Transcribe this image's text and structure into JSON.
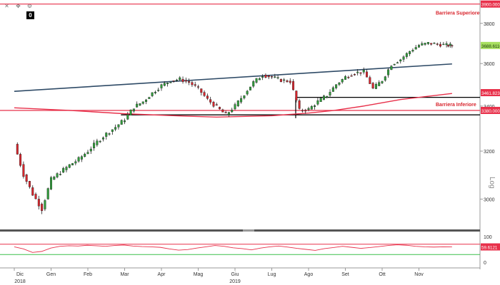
{
  "toolbar": {
    "icons": [
      "cross-icon",
      "move-icon",
      "settings-icon"
    ],
    "box_label": "0"
  },
  "chart_data": {
    "type": "candlestick",
    "xlabel": "",
    "ylabel": "",
    "yscale_label": "Log",
    "ylim": [
      2880,
      3910
    ],
    "y_ticks": [
      "3800",
      "3600",
      "3400",
      "3200",
      "3000"
    ],
    "x_tick_labels": [
      "Dic",
      "Gen",
      "Feb",
      "Mar",
      "Apr",
      "Mag",
      "Giu",
      "Lug",
      "Ago",
      "Set",
      "Ott",
      "Nov"
    ],
    "x_year_labels": [
      {
        "label": "2018",
        "month": "Dic"
      },
      {
        "label": "2019",
        "month": "Giu"
      }
    ],
    "price_tags": [
      {
        "label": "3900.0000",
        "value": 3900,
        "color": "#e8304a"
      },
      {
        "label": "3688.6110",
        "value": 3688.611,
        "color": "#a8e060"
      },
      {
        "label": "3461.8238",
        "value": 3461.8238,
        "color": "#e8304a"
      },
      {
        "label": "3380.0000",
        "value": 3380,
        "color": "#e8304a"
      }
    ],
    "annotations": [
      {
        "text": "Barriera Superiore",
        "value": 3900
      },
      {
        "text": "Barriera Inferiore",
        "value": 3380
      }
    ],
    "horizontal_lines": [
      {
        "value": 3900,
        "color": "#e8304a"
      },
      {
        "value": 3380,
        "color": "#e8304a"
      },
      {
        "value": 3360,
        "color": "#000000"
      }
    ],
    "trendline": {
      "from": {
        "month": 0,
        "value": 3468
      },
      "to": {
        "month": 11.9,
        "value": 3598
      },
      "color": "#2e4a66"
    },
    "moving_average": {
      "color": "#e8304a",
      "points": [
        [
          0,
          3392
        ],
        [
          1.5,
          3380
        ],
        [
          3,
          3365
        ],
        [
          4.5,
          3355
        ],
        [
          5.5,
          3350
        ],
        [
          7,
          3356
        ],
        [
          8,
          3368
        ],
        [
          8.7,
          3380
        ],
        [
          9.5,
          3400
        ],
        [
          10.5,
          3430
        ],
        [
          11.9,
          3458
        ]
      ]
    },
    "support_boxes": [
      {
        "from_month": 2.9,
        "to_month": 11.9,
        "value": 3360
      },
      {
        "from_month": 7.65,
        "to_month": 11.9,
        "value": 3440
      }
    ],
    "prices_weekly": [
      [
        0.0,
        3230
      ],
      [
        0.25,
        3100
      ],
      [
        0.5,
        3020
      ],
      [
        0.75,
        2960
      ],
      [
        1.0,
        3080
      ],
      [
        1.25,
        3110
      ],
      [
        1.5,
        3140
      ],
      [
        1.75,
        3165
      ],
      [
        2.0,
        3200
      ],
      [
        2.25,
        3240
      ],
      [
        2.5,
        3275
      ],
      [
        2.75,
        3305
      ],
      [
        3.0,
        3340
      ],
      [
        3.25,
        3395
      ],
      [
        3.5,
        3420
      ],
      [
        3.75,
        3460
      ],
      [
        4.0,
        3495
      ],
      [
        4.25,
        3518
      ],
      [
        4.5,
        3525
      ],
      [
        4.75,
        3510
      ],
      [
        5.0,
        3480
      ],
      [
        5.25,
        3430
      ],
      [
        5.5,
        3395
      ],
      [
        5.75,
        3360
      ],
      [
        6.0,
        3400
      ],
      [
        6.25,
        3455
      ],
      [
        6.5,
        3510
      ],
      [
        6.75,
        3545
      ],
      [
        7.0,
        3535
      ],
      [
        7.25,
        3520
      ],
      [
        7.5,
        3515
      ],
      [
        7.75,
        3380
      ],
      [
        8.0,
        3385
      ],
      [
        8.25,
        3420
      ],
      [
        8.5,
        3450
      ],
      [
        8.75,
        3500
      ],
      [
        9.0,
        3535
      ],
      [
        9.25,
        3555
      ],
      [
        9.5,
        3560
      ],
      [
        9.75,
        3480
      ],
      [
        10.0,
        3520
      ],
      [
        10.25,
        3595
      ],
      [
        10.5,
        3620
      ],
      [
        10.75,
        3660
      ],
      [
        11.0,
        3690
      ],
      [
        11.25,
        3700
      ],
      [
        11.5,
        3695
      ],
      [
        11.75,
        3690
      ],
      [
        11.9,
        3688.611
      ]
    ],
    "oscillator": {
      "label": "59.6121",
      "value": 59.6121,
      "ylim": [
        0,
        100
      ],
      "y_ticks": [
        "100",
        "0"
      ],
      "levels": [
        {
          "value": 70,
          "color": "#e8304a"
        },
        {
          "value": 30,
          "color": "#3bbf4b"
        }
      ],
      "series": [
        60,
        52,
        38,
        42,
        55,
        62,
        64,
        63,
        66,
        64,
        62,
        65,
        67,
        63,
        61,
        60,
        58,
        52,
        47,
        49,
        55,
        60,
        65,
        62,
        56,
        53,
        48,
        55,
        60,
        63,
        59,
        54,
        50,
        46,
        53,
        57,
        62,
        58,
        54,
        57,
        61,
        65,
        68,
        66,
        62,
        60,
        59,
        60,
        59.6121
      ]
    }
  }
}
